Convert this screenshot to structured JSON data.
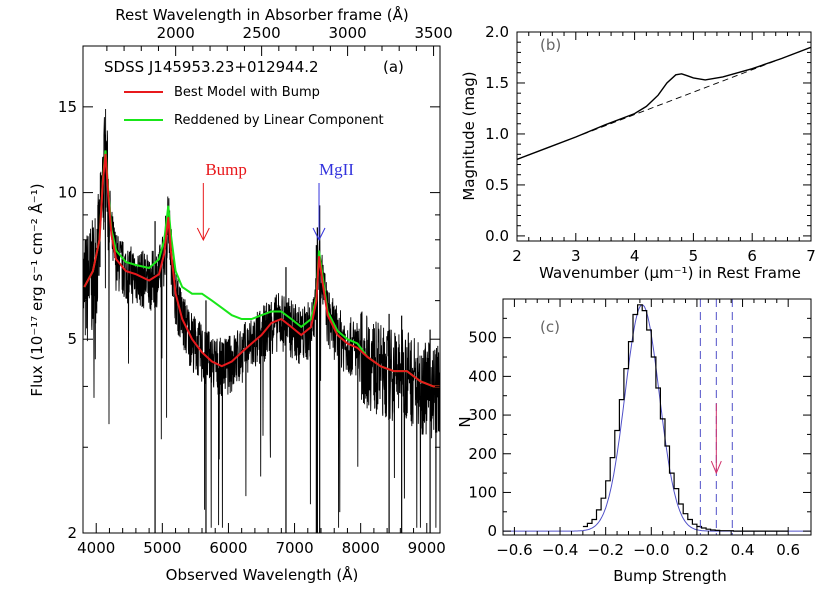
{
  "chart_data": [
    {
      "panel": "(a)",
      "type": "line",
      "annotation": "SDSS J145953.23+012944.2",
      "xlabel": "Observed Wavelength (Å)",
      "top_xlabel": "Rest Wavelength in Absorber frame (Å)",
      "ylabel": "Flux (10⁻¹⁷ erg s⁻¹ cm⁻² Å⁻¹)",
      "yscale": "log",
      "xlim": [
        3800,
        9200
      ],
      "ylim": [
        2,
        20
      ],
      "x_ticks": [
        4000,
        5000,
        6000,
        7000,
        8000,
        9000
      ],
      "x_tick_labels": [
        "4000",
        "5000",
        "6000",
        "7000",
        "8000",
        "9000"
      ],
      "top_x_ticks": [
        2000,
        2500,
        3000,
        3500
      ],
      "top_x_tick_labels": [
        "2000",
        "2500",
        "3000",
        "3500"
      ],
      "top_axis_scale": 0.3845,
      "y_ticks": [
        2,
        5,
        10,
        15
      ],
      "y_tick_labels": [
        "2",
        "5",
        "10",
        "15"
      ],
      "legend": [
        {
          "name": "Best Model with Bump",
          "color": "#e8191c"
        },
        {
          "name": "Reddened by Linear Component",
          "color": "#19e619"
        }
      ],
      "arrows": [
        {
          "label": "Bump",
          "x": 5620,
          "color": "#e8191c"
        },
        {
          "label": "MgII",
          "x": 7370,
          "color": "#3333dd"
        }
      ],
      "series": [
        {
          "name": "Best Model with Bump",
          "color": "#e8191c",
          "x": [
            3820,
            3950,
            4050,
            4100,
            4140,
            4180,
            4230,
            4300,
            4450,
            4600,
            4800,
            4950,
            5030,
            5090,
            5130,
            5200,
            5300,
            5450,
            5600,
            5750,
            5900,
            6050,
            6200,
            6350,
            6500,
            6650,
            6800,
            6950,
            7100,
            7250,
            7330,
            7370,
            7420,
            7500,
            7650,
            7800,
            7950,
            8100,
            8300,
            8500,
            8700,
            8900,
            9100,
            9200
          ],
          "y": [
            6.4,
            6.9,
            8.0,
            10.5,
            12.0,
            10.0,
            8.2,
            7.3,
            6.9,
            6.8,
            6.6,
            6.8,
            7.5,
            8.9,
            7.6,
            6.2,
            5.5,
            5.0,
            4.7,
            4.5,
            4.4,
            4.5,
            4.7,
            4.9,
            5.1,
            5.4,
            5.5,
            5.3,
            5.1,
            5.3,
            6.0,
            7.4,
            6.6,
            5.6,
            5.1,
            4.9,
            4.8,
            4.6,
            4.4,
            4.3,
            4.3,
            4.1,
            4.0,
            4.0
          ]
        },
        {
          "name": "Reddened by Linear Component",
          "color": "#19e619",
          "x": [
            3820,
            3950,
            4050,
            4100,
            4140,
            4180,
            4230,
            4300,
            4450,
            4600,
            4800,
            4950,
            5030,
            5090,
            5130,
            5200,
            5300,
            5450,
            5600,
            5750,
            5900,
            6050,
            6200,
            6350,
            6500,
            6650,
            6800,
            6950,
            7100,
            7250,
            7330,
            7370,
            7420,
            7500,
            7650,
            7800,
            7950,
            8100,
            8300,
            8500,
            8700,
            8900,
            9100,
            9200
          ],
          "y": [
            6.4,
            6.9,
            8.0,
            10.6,
            12.2,
            10.2,
            8.4,
            7.6,
            7.2,
            7.1,
            7.0,
            7.3,
            8.0,
            9.4,
            8.2,
            6.9,
            6.4,
            6.2,
            6.2,
            6.0,
            5.8,
            5.6,
            5.5,
            5.5,
            5.6,
            5.7,
            5.7,
            5.5,
            5.3,
            5.5,
            6.1,
            7.6,
            6.8,
            5.7,
            5.2,
            5.0,
            4.9,
            4.6,
            4.4,
            4.3,
            4.3,
            4.1,
            4.0,
            4.0
          ]
        }
      ]
    },
    {
      "panel": "(b)",
      "type": "line",
      "xlabel": "Wavenumber (μm⁻¹) in Rest Frame",
      "ylabel": "Magnitude (mag)",
      "xlim": [
        2,
        7
      ],
      "ylim": [
        -0.05,
        2.0
      ],
      "x_ticks": [
        2,
        3,
        4,
        5,
        6,
        7
      ],
      "x_tick_labels": [
        "2",
        "3",
        "4",
        "5",
        "6",
        "7"
      ],
      "y_ticks": [
        0.0,
        0.5,
        1.0,
        1.5,
        2.0
      ],
      "y_tick_labels": [
        "0.0",
        "0.5",
        "1.0",
        "1.5",
        "2.0"
      ],
      "series": [
        {
          "style": "solid",
          "x": [
            2.0,
            2.5,
            3.0,
            3.5,
            4.0,
            4.2,
            4.4,
            4.55,
            4.7,
            4.8,
            4.9,
            5.0,
            5.2,
            5.5,
            6.0,
            6.5,
            7.0
          ],
          "y": [
            0.75,
            0.86,
            0.97,
            1.09,
            1.2,
            1.27,
            1.38,
            1.5,
            1.58,
            1.59,
            1.57,
            1.55,
            1.53,
            1.56,
            1.64,
            1.74,
            1.85
          ]
        },
        {
          "style": "dashed",
          "x": [
            2.0,
            7.0
          ],
          "y": [
            0.75,
            1.85
          ]
        }
      ]
    },
    {
      "panel": "(c)",
      "type": "histogram",
      "xlabel": "Bump Strength",
      "ylabel": "N",
      "xlim": [
        -0.65,
        0.7
      ],
      "ylim": [
        -10,
        600
      ],
      "x_ticks": [
        -0.6,
        -0.4,
        -0.2,
        0.0,
        0.2,
        0.4,
        0.6
      ],
      "x_tick_labels": [
        "−0.6",
        "−0.4",
        "−0.2",
        "−0.0",
        "0.2",
        "0.4",
        "0.6"
      ],
      "y_ticks": [
        0,
        100,
        200,
        300,
        400,
        500
      ],
      "y_tick_labels": [
        "0",
        "100",
        "200",
        "300",
        "400",
        "500"
      ],
      "bin_width": 0.02,
      "bin_start": -0.3,
      "counts": [
        12,
        20,
        30,
        55,
        85,
        130,
        190,
        260,
        340,
        420,
        490,
        560,
        585,
        570,
        520,
        450,
        370,
        290,
        220,
        150,
        110,
        70,
        45,
        30,
        18,
        12,
        8,
        5,
        3,
        2,
        1,
        1,
        1,
        0,
        0,
        0,
        0,
        0,
        0,
        0,
        0,
        0,
        0,
        0,
        0
      ],
      "gaussian": {
        "mu": -0.04,
        "sigma": 0.075,
        "amplitude": 585
      },
      "dashed_lines_x": [
        0.215,
        0.285,
        0.355
      ],
      "arrow": {
        "x": 0.285,
        "y_from": 330,
        "y_to": 150,
        "color": "#d0306a"
      }
    }
  ]
}
